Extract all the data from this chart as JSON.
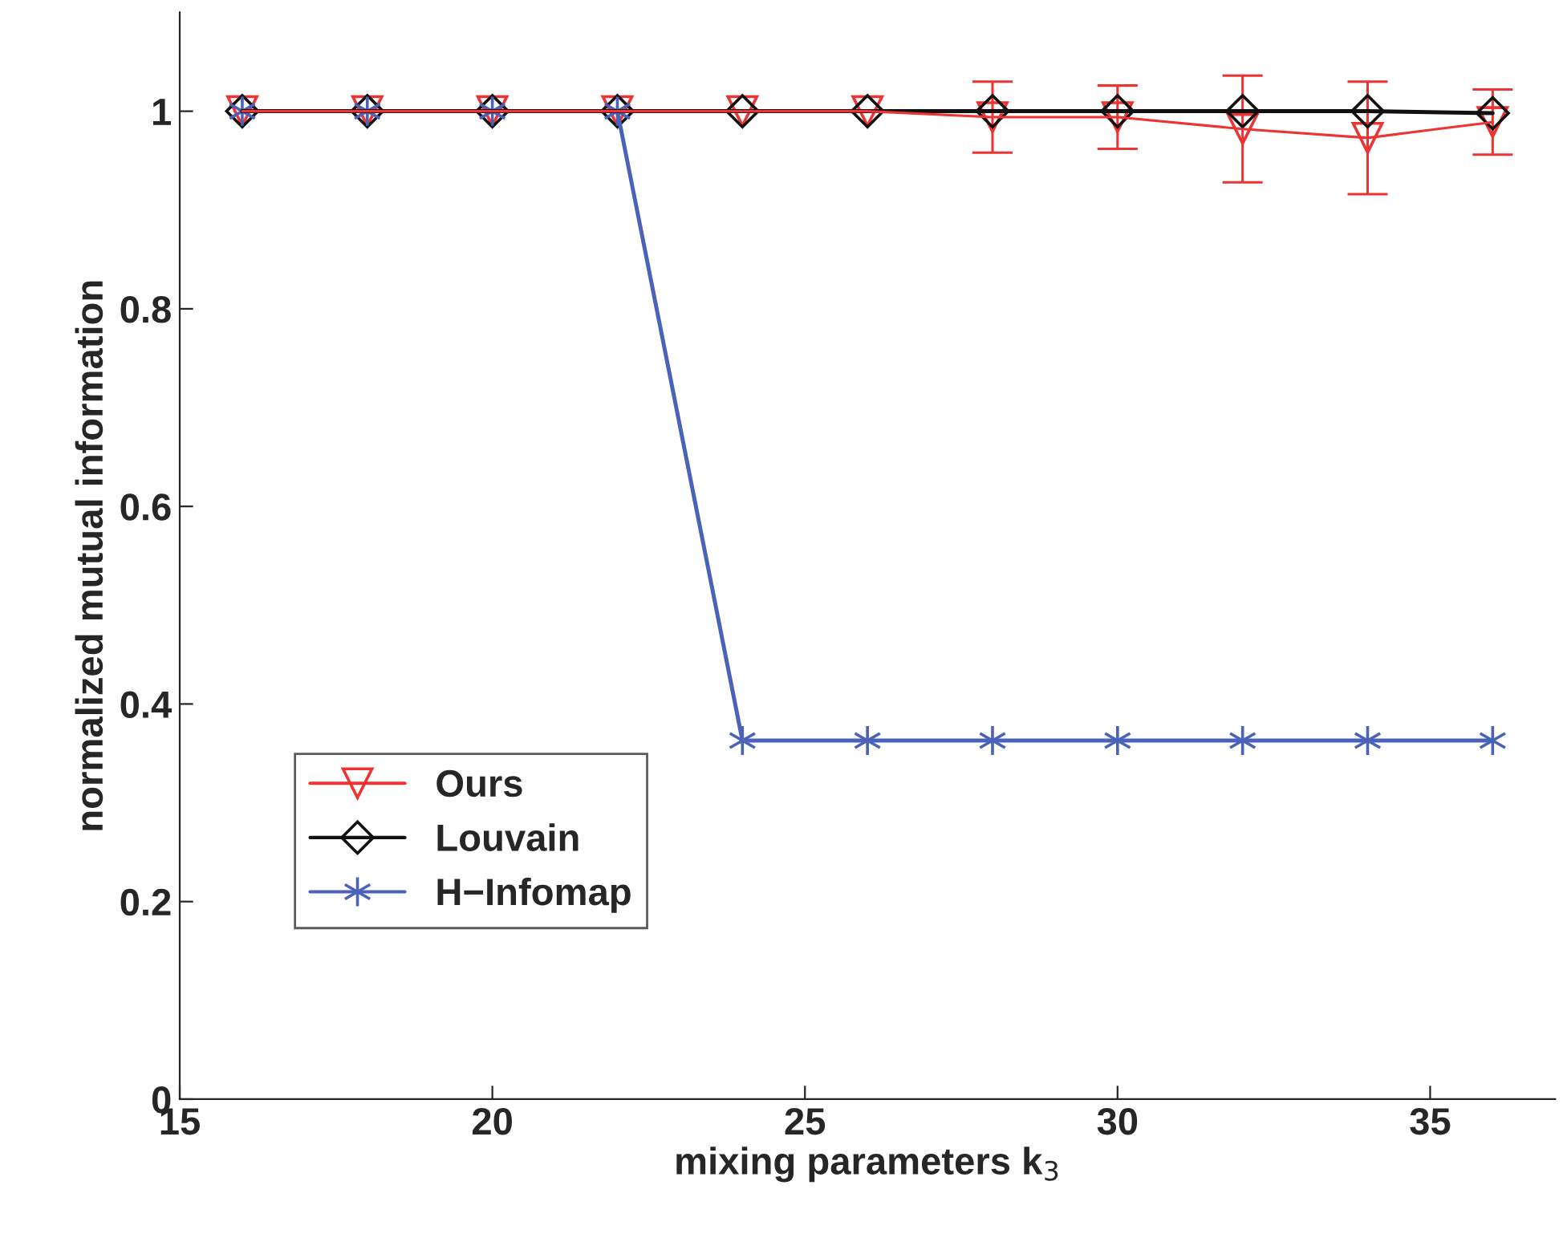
{
  "chart_data": {
    "type": "line",
    "xlabel": "mixing parameters k$_{3}$",
    "ylabel": "normalized mutual information",
    "x": [
      16,
      18,
      20,
      22,
      24,
      26,
      28,
      30,
      32,
      34,
      36
    ],
    "series": [
      {
        "name": "Ours",
        "color": "#ee3333",
        "marker": "triangle",
        "values": [
          1,
          1,
          1,
          1,
          1,
          1,
          0.994,
          0.994,
          0.982,
          0.973,
          0.989
        ],
        "errors": [
          null,
          null,
          null,
          null,
          null,
          null,
          0.036,
          0.032,
          0.054,
          0.057,
          0.033
        ]
      },
      {
        "name": "Louvain",
        "color": "#111111",
        "marker": "diamond",
        "values": [
          1,
          1,
          1,
          1,
          1,
          1,
          1,
          1,
          1,
          1,
          0.998
        ]
      },
      {
        "name": "H−Infomap",
        "color": "#4a63b8",
        "marker": "cross",
        "values": [
          1,
          1,
          1,
          1,
          0.363,
          0.363,
          0.363,
          0.363,
          0.363,
          0.363,
          0.363
        ]
      }
    ],
    "xlim": [
      15,
      37
    ],
    "xticks": [
      15,
      20,
      25,
      30,
      35
    ],
    "ylim": [
      0,
      1.1
    ],
    "yticks": [
      0,
      0.2,
      0.4,
      0.6,
      0.8,
      1
    ],
    "grid": false,
    "legend": "bottom left",
    "line_style": "solid"
  }
}
